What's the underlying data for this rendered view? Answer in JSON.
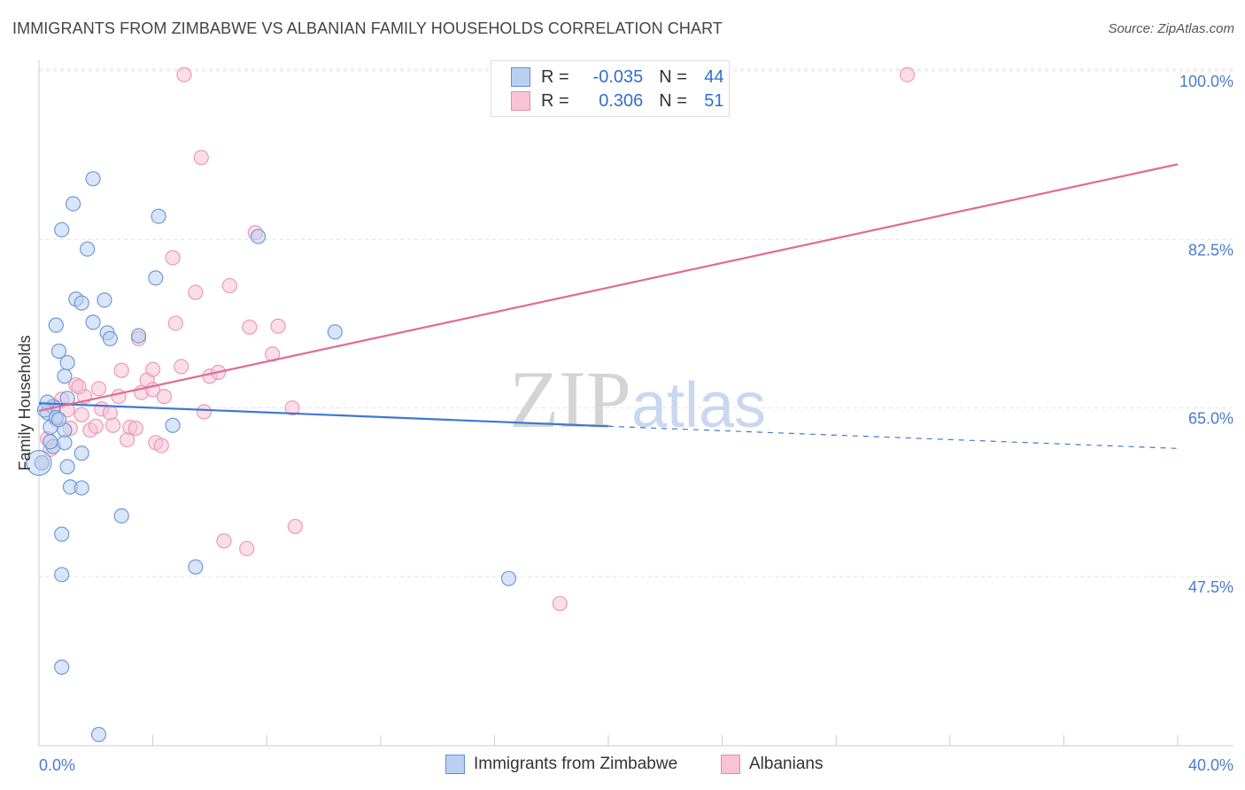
{
  "title": "IMMIGRANTS FROM ZIMBABWE VS ALBANIAN FAMILY HOUSEHOLDS CORRELATION CHART",
  "source": "Source: ZipAtlas.com",
  "watermark": "ZIPatlas",
  "legend": {
    "r_label": "R =",
    "n_label": "N =",
    "rows": [
      {
        "r": "-0.035",
        "n": "44"
      },
      {
        "r": "0.306",
        "n": "51"
      }
    ]
  },
  "colors": {
    "blue": "#3f78d0",
    "blue_fill": "#b9d0f2",
    "pink": "#e06a96",
    "pink_fill": "#f8c3d5"
  },
  "chart_data": {
    "type": "scatter",
    "title": "IMMIGRANTS FROM ZIMBABWE VS ALBANIAN FAMILY HOUSEHOLDS CORRELATION CHART",
    "xlabel": "",
    "ylabel": "Family Households",
    "xlim": [
      0,
      40
    ],
    "ylim": [
      30,
      100
    ],
    "x_tick_labels": [
      "0.0%",
      "40.0%"
    ],
    "y_tick_labels": [
      "100.0%",
      "82.5%",
      "65.0%",
      "47.5%"
    ],
    "y_ticks": [
      100,
      82.5,
      65,
      47.5
    ],
    "legend_position": "bottom",
    "series": [
      {
        "name": "Immigrants from Zimbabwe",
        "color": "#3f78d0",
        "r": -0.035,
        "n": 44,
        "trend": {
          "x0": 0,
          "y0": 65.5,
          "x1": 20,
          "y1": 63.1,
          "dash_to_x": 40,
          "dash_to_y": 60.8
        },
        "points": [
          [
            0.1,
            59.3
          ],
          [
            0.3,
            64.5
          ],
          [
            0.4,
            63.0
          ],
          [
            0.5,
            65.1
          ],
          [
            0.5,
            61.0
          ],
          [
            0.6,
            73.6
          ],
          [
            0.7,
            70.9
          ],
          [
            0.8,
            47.7
          ],
          [
            0.8,
            51.9
          ],
          [
            0.8,
            38.1
          ],
          [
            0.8,
            83.5
          ],
          [
            0.9,
            68.3
          ],
          [
            0.9,
            62.7
          ],
          [
            0.9,
            61.4
          ],
          [
            1.0,
            58.9
          ],
          [
            1.0,
            69.7
          ],
          [
            1.1,
            56.8
          ],
          [
            1.2,
            86.2
          ],
          [
            1.3,
            76.3
          ],
          [
            1.5,
            60.3
          ],
          [
            1.5,
            75.9
          ],
          [
            1.5,
            56.7
          ],
          [
            1.7,
            81.5
          ],
          [
            1.9,
            88.8
          ],
          [
            1.9,
            73.9
          ],
          [
            2.1,
            31.1
          ],
          [
            2.3,
            76.2
          ],
          [
            2.4,
            72.8
          ],
          [
            2.5,
            72.2
          ],
          [
            2.9,
            53.8
          ],
          [
            3.5,
            72.5
          ],
          [
            4.1,
            78.5
          ],
          [
            4.2,
            84.9
          ],
          [
            4.7,
            63.2
          ],
          [
            5.5,
            48.5
          ],
          [
            7.7,
            82.8
          ],
          [
            10.4,
            72.9
          ],
          [
            16.5,
            47.3
          ],
          [
            0.3,
            65.6
          ],
          [
            0.6,
            64.0
          ],
          [
            0.2,
            64.8
          ],
          [
            1.0,
            66.0
          ],
          [
            0.4,
            61.5
          ],
          [
            0.7,
            63.8
          ]
        ]
      },
      {
        "name": "Albanians",
        "color": "#e06a96",
        "r": 0.306,
        "n": 51,
        "trend": {
          "x0": 0,
          "y0": 64.7,
          "x1": 40,
          "y1": 90.3
        },
        "points": [
          [
            0.1,
            59.3
          ],
          [
            0.3,
            61.8
          ],
          [
            0.4,
            60.7
          ],
          [
            0.6,
            63.8
          ],
          [
            0.8,
            65.9
          ],
          [
            1.0,
            64.8
          ],
          [
            1.1,
            62.9
          ],
          [
            1.3,
            67.4
          ],
          [
            1.5,
            64.3
          ],
          [
            1.6,
            66.2
          ],
          [
            1.8,
            62.7
          ],
          [
            2.0,
            63.1
          ],
          [
            2.1,
            67.0
          ],
          [
            2.2,
            64.9
          ],
          [
            2.5,
            64.5
          ],
          [
            2.6,
            63.2
          ],
          [
            2.8,
            66.2
          ],
          [
            2.9,
            68.9
          ],
          [
            3.1,
            61.7
          ],
          [
            3.2,
            63.0
          ],
          [
            3.4,
            62.9
          ],
          [
            3.5,
            72.2
          ],
          [
            3.6,
            66.6
          ],
          [
            3.8,
            67.9
          ],
          [
            4.0,
            66.9
          ],
          [
            4.0,
            69.0
          ],
          [
            4.1,
            61.4
          ],
          [
            4.3,
            61.1
          ],
          [
            4.4,
            66.2
          ],
          [
            4.7,
            80.6
          ],
          [
            4.8,
            73.8
          ],
          [
            5.0,
            69.3
          ],
          [
            5.1,
            99.6
          ],
          [
            5.5,
            77.0
          ],
          [
            5.7,
            91.0
          ],
          [
            5.8,
            64.6
          ],
          [
            6.0,
            68.3
          ],
          [
            6.3,
            68.7
          ],
          [
            6.5,
            51.2
          ],
          [
            6.7,
            77.7
          ],
          [
            7.3,
            50.4
          ],
          [
            7.4,
            73.4
          ],
          [
            7.6,
            83.2
          ],
          [
            8.2,
            70.6
          ],
          [
            8.4,
            73.5
          ],
          [
            8.9,
            65.0
          ],
          [
            9.0,
            52.7
          ],
          [
            18.3,
            44.7
          ],
          [
            30.5,
            99.6
          ],
          [
            0.5,
            65.2
          ],
          [
            1.4,
            67.2
          ]
        ]
      }
    ]
  },
  "bottom_legend": {
    "items": [
      "Immigrants from Zimbabwe",
      "Albanians"
    ]
  },
  "axes": {
    "y_title": "Family Households",
    "x_min_label": "0.0%",
    "x_max_label": "40.0%"
  }
}
